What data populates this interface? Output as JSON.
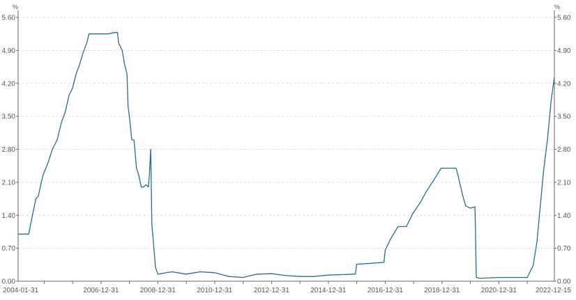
{
  "chart_data": {
    "type": "line",
    "y_unit_left": "%",
    "y_unit_right": "%",
    "ylim": [
      0,
      5.6
    ],
    "yticks": [
      0.0,
      0.7,
      1.4,
      2.1,
      2.8,
      3.5,
      4.2,
      4.9,
      5.6
    ],
    "ytick_labels": [
      "0.00",
      "0.70",
      "1.40",
      "2.10",
      "2.80",
      "3.50",
      "4.20",
      "4.90",
      "5.60"
    ],
    "xlim": [
      "2004-01-31",
      "2022-12-15"
    ],
    "xticks": [
      "2004-01-31",
      "2006-12-31",
      "2008-12-31",
      "2010-12-31",
      "2012-12-31",
      "2014-12-31",
      "2016-12-31",
      "2018-12-31",
      "2020-12-31",
      "2022-12-15"
    ],
    "grid": true,
    "legend": "none",
    "line_color": "#1f6e94",
    "series": [
      {
        "x": [
          "2004-01-31",
          "2004-03-31",
          "2004-06-15",
          "2004-07-15",
          "2004-09-15",
          "2004-10-15",
          "2004-12-15",
          "2005-02-15",
          "2005-04-15",
          "2005-06-15",
          "2005-08-15",
          "2005-09-30",
          "2005-11-15",
          "2005-12-31",
          "2006-02-15",
          "2006-03-31",
          "2006-05-15",
          "2006-06-30",
          "2006-07-31",
          "2006-09-30",
          "2006-12-31",
          "2007-03-31",
          "2007-06-30",
          "2007-07-31",
          "2007-08-15",
          "2007-08-31",
          "2007-09-30",
          "2007-10-31",
          "2007-11-30",
          "2007-12-15",
          "2007-12-31",
          "2008-01-31",
          "2008-02-28",
          "2008-03-31",
          "2008-04-30",
          "2008-05-31",
          "2008-06-30",
          "2008-07-31",
          "2008-08-31",
          "2008-09-15",
          "2008-09-30",
          "2008-10-15",
          "2008-10-31",
          "2008-11-30",
          "2008-12-31",
          "2009-06-30",
          "2009-12-31",
          "2010-06-30",
          "2010-12-31",
          "2011-06-30",
          "2011-12-31",
          "2012-06-30",
          "2012-12-31",
          "2013-06-30",
          "2013-12-31",
          "2014-06-30",
          "2014-12-31",
          "2015-06-30",
          "2015-12-15",
          "2015-12-31",
          "2016-06-30",
          "2016-12-15",
          "2016-12-31",
          "2017-03-15",
          "2017-06-15",
          "2017-09-30",
          "2017-12-15",
          "2018-03-31",
          "2018-06-15",
          "2018-09-30",
          "2018-12-20",
          "2019-03-31",
          "2019-06-30",
          "2019-08-01",
          "2019-09-19",
          "2019-10-31",
          "2019-12-31",
          "2020-02-28",
          "2020-03-05",
          "2020-03-16",
          "2020-04-30",
          "2020-12-31",
          "2021-06-30",
          "2021-12-31",
          "2022-03-17",
          "2022-05-05",
          "2022-06-16",
          "2022-07-28",
          "2022-09-22",
          "2022-11-03",
          "2022-12-15"
        ],
        "y": [
          1.0,
          1.0,
          1.0,
          1.25,
          1.75,
          1.8,
          2.25,
          2.5,
          2.8,
          3.0,
          3.4,
          3.6,
          3.95,
          4.1,
          4.4,
          4.6,
          4.85,
          5.05,
          5.25,
          5.25,
          5.25,
          5.25,
          5.28,
          5.28,
          5.05,
          5.0,
          4.9,
          4.6,
          4.4,
          3.7,
          3.5,
          3.0,
          3.0,
          2.4,
          2.25,
          2.0,
          2.0,
          2.05,
          2.0,
          2.3,
          2.8,
          1.2,
          0.9,
          0.3,
          0.15,
          0.2,
          0.15,
          0.2,
          0.18,
          0.1,
          0.08,
          0.15,
          0.16,
          0.12,
          0.1,
          0.1,
          0.13,
          0.14,
          0.15,
          0.36,
          0.38,
          0.4,
          0.66,
          0.91,
          1.16,
          1.16,
          1.42,
          1.68,
          1.91,
          2.18,
          2.4,
          2.4,
          2.4,
          2.2,
          1.85,
          1.6,
          1.55,
          1.58,
          1.1,
          0.08,
          0.06,
          0.08,
          0.08,
          0.08,
          0.33,
          0.83,
          1.58,
          2.33,
          3.08,
          3.83,
          4.33
        ]
      }
    ]
  }
}
